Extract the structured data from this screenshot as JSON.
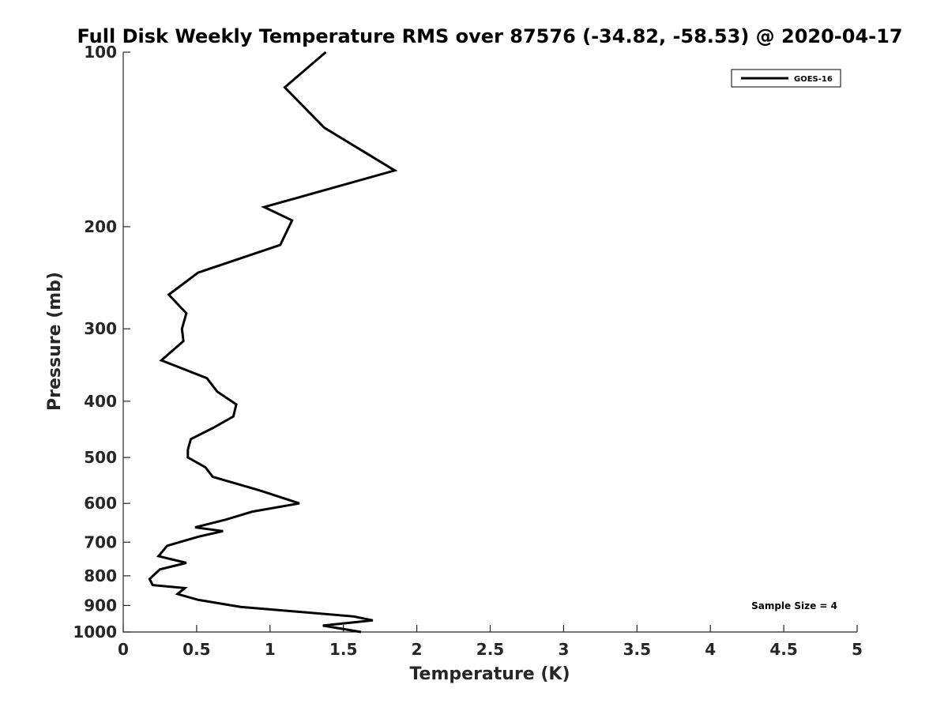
{
  "chart_data": {
    "type": "line",
    "title": "Full Disk Weekly Temperature RMS over 87576 (-34.82, -58.53) @ 2020-04-17",
    "xlabel": "Temperature (K)",
    "ylabel": "Pressure (mb)",
    "xlim": [
      0,
      5
    ],
    "ylim": [
      100,
      1000
    ],
    "y_scale": "log",
    "y_reversed": true,
    "xticks": [
      0,
      0.5,
      1,
      1.5,
      2,
      2.5,
      3,
      3.5,
      4,
      4.5,
      5
    ],
    "xtick_labels": [
      "0",
      "0.5",
      "1",
      "1.5",
      "2",
      "2.5",
      "3",
      "3.5",
      "4",
      "4.5",
      "5"
    ],
    "yticks": [
      100,
      200,
      300,
      400,
      500,
      600,
      700,
      800,
      900,
      1000
    ],
    "ytick_labels": [
      "100",
      "200",
      "300",
      "400",
      "500",
      "600",
      "700",
      "800",
      "900",
      "1000"
    ],
    "grid": false,
    "legend_position": "top-right",
    "annotation": "Sample Size = 4",
    "series": [
      {
        "name": "GOES-16",
        "color": "#000000",
        "points": [
          [
            1.38,
            100
          ],
          [
            1.1,
            115
          ],
          [
            1.37,
            135
          ],
          [
            1.85,
            160
          ],
          [
            0.96,
            185
          ],
          [
            1.15,
            195
          ],
          [
            1.07,
            215
          ],
          [
            0.51,
            240
          ],
          [
            0.31,
            262
          ],
          [
            0.43,
            282
          ],
          [
            0.4,
            300
          ],
          [
            0.41,
            315
          ],
          [
            0.26,
            340
          ],
          [
            0.57,
            365
          ],
          [
            0.64,
            385
          ],
          [
            0.77,
            405
          ],
          [
            0.75,
            425
          ],
          [
            0.61,
            445
          ],
          [
            0.46,
            465
          ],
          [
            0.44,
            485
          ],
          [
            0.44,
            500
          ],
          [
            0.56,
            520
          ],
          [
            0.61,
            540
          ],
          [
            0.93,
            570
          ],
          [
            1.2,
            600
          ],
          [
            0.88,
            620
          ],
          [
            0.7,
            640
          ],
          [
            0.49,
            660
          ],
          [
            0.68,
            670
          ],
          [
            0.51,
            685
          ],
          [
            0.3,
            710
          ],
          [
            0.24,
            740
          ],
          [
            0.43,
            760
          ],
          [
            0.25,
            780
          ],
          [
            0.18,
            810
          ],
          [
            0.2,
            830
          ],
          [
            0.42,
            840
          ],
          [
            0.37,
            860
          ],
          [
            0.51,
            880
          ],
          [
            0.8,
            905
          ],
          [
            1.57,
            940
          ],
          [
            1.7,
            955
          ],
          [
            1.36,
            975
          ],
          [
            1.62,
            1000
          ]
        ]
      }
    ]
  }
}
